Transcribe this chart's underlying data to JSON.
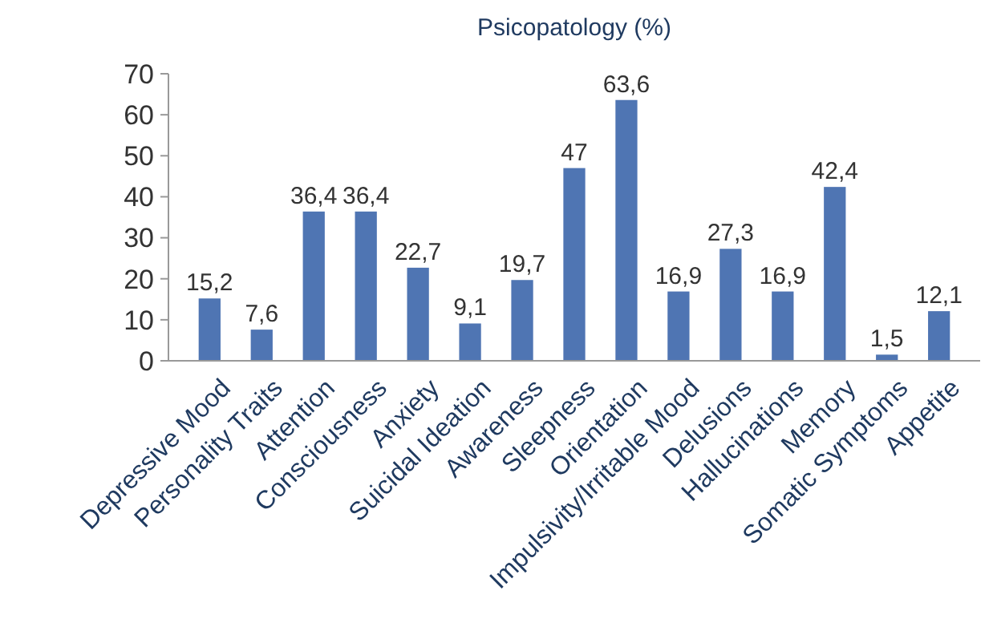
{
  "chart_data": {
    "type": "bar",
    "title": "Psicopatology (%)",
    "categories": [
      "Depressive Mood",
      "Personality Traits",
      "Attention",
      "Consciousness",
      "Anxiety",
      "Suicidal Ideation",
      "Awareness",
      "Sleepness",
      "Orientation",
      "Impulsivity/Irritable Mood",
      "Delusions",
      "Hallucinations",
      "Memory",
      "Somatic Symptoms",
      "Appetite"
    ],
    "values": [
      15.2,
      7.6,
      36.4,
      36.4,
      22.7,
      9.1,
      19.7,
      47,
      63.6,
      16.9,
      27.3,
      16.9,
      42.4,
      1.5,
      12.1
    ],
    "value_labels": [
      "15,2",
      "7,6",
      "36,4",
      "36,4",
      "22,7",
      "9,1",
      "19,7",
      "47",
      "63,6",
      "16,9",
      "27,3",
      "16,9",
      "42,4",
      "1,5",
      "12,1"
    ],
    "color": "#4f75b3",
    "ylim": [
      0,
      70
    ],
    "yticks": [
      0,
      10,
      20,
      30,
      40,
      50,
      60,
      70
    ],
    "grid": false
  }
}
